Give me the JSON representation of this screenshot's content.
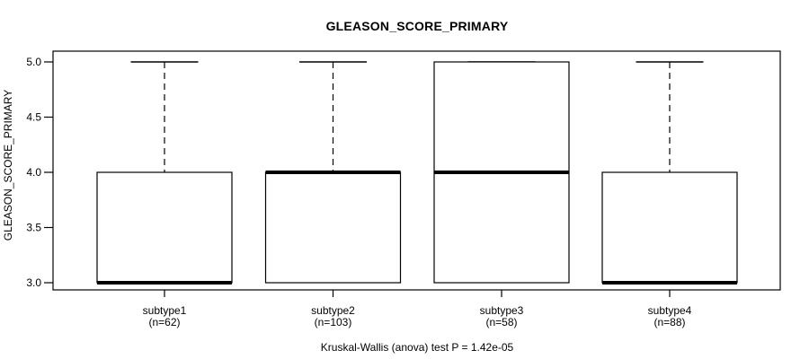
{
  "chart_data": {
    "type": "boxplot",
    "title": "GLEASON_SCORE_PRIMARY",
    "ylabel": "GLEASON_SCORE_PRIMARY",
    "xlabel": "",
    "ylim": [
      3.0,
      5.0
    ],
    "yticks": [
      "3.0",
      "3.5",
      "4.0",
      "4.5",
      "5.0"
    ],
    "grid": false,
    "legend": null,
    "caption": "Kruskal-Wallis (anova) test P = 1.42e-05",
    "colors": {
      "line": "#000000",
      "box_fill": "#ffffff",
      "background": "#ffffff"
    },
    "groups": [
      {
        "label": "subtype1",
        "n_label": "(n=62)",
        "n": 62,
        "min": 3.0,
        "q1": 3.0,
        "median": 3.0,
        "q3": 4.0,
        "max": 5.0
      },
      {
        "label": "subtype2",
        "n_label": "(n=103)",
        "n": 103,
        "min": 3.0,
        "q1": 3.0,
        "median": 4.0,
        "q3": 4.0,
        "max": 5.0
      },
      {
        "label": "subtype3",
        "n_label": "(n=58)",
        "n": 58,
        "min": 3.0,
        "q1": 3.0,
        "median": 4.0,
        "q3": 5.0,
        "max": 5.0
      },
      {
        "label": "subtype4",
        "n_label": "(n=88)",
        "n": 88,
        "min": 3.0,
        "q1": 3.0,
        "median": 3.0,
        "q3": 4.0,
        "max": 5.0
      }
    ]
  }
}
